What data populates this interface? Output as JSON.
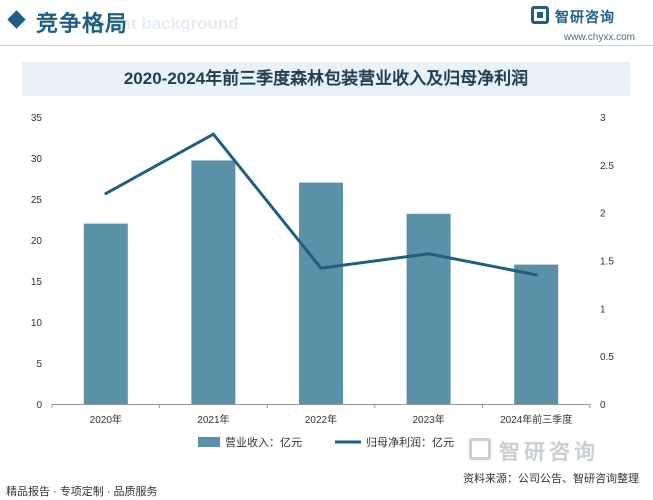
{
  "header": {
    "section_title": "竞争格局",
    "section_ghost_text": "ment background",
    "brand_name": "智研咨询",
    "site_url": "www.chyxx.com"
  },
  "chart_data": {
    "type": "bar",
    "title": "2020-2024年前三季度森林包装营业收入及归母净利润",
    "categories": [
      "2020年",
      "2021年",
      "2022年",
      "2023年",
      "2024年前三季度"
    ],
    "series": [
      {
        "name": "营业收入：亿元",
        "kind": "bar",
        "axis": "left",
        "color": "#5a90a8",
        "values": [
          22.0,
          29.7,
          27.0,
          23.2,
          17.0
        ]
      },
      {
        "name": "归母净利润：亿元",
        "kind": "line",
        "axis": "right",
        "color": "#1f5f80",
        "values": [
          2.2,
          2.82,
          1.42,
          1.57,
          1.35
        ]
      }
    ],
    "y_left": {
      "min": 0,
      "max": 35,
      "ticks": [
        "0",
        "5",
        "10",
        "15",
        "20",
        "25",
        "30",
        "35"
      ]
    },
    "y_right": {
      "min": 0,
      "max": 3,
      "ticks": [
        "0",
        "0.5",
        "1",
        "1.5",
        "2",
        "2.5",
        "3"
      ]
    },
    "legend_position": "bottom"
  },
  "footer": {
    "tagline": "精品报告 · 专项定制 · 品质服务",
    "source": "资料来源：公司公告、智研咨询整理",
    "brand_name": "智研咨询"
  }
}
